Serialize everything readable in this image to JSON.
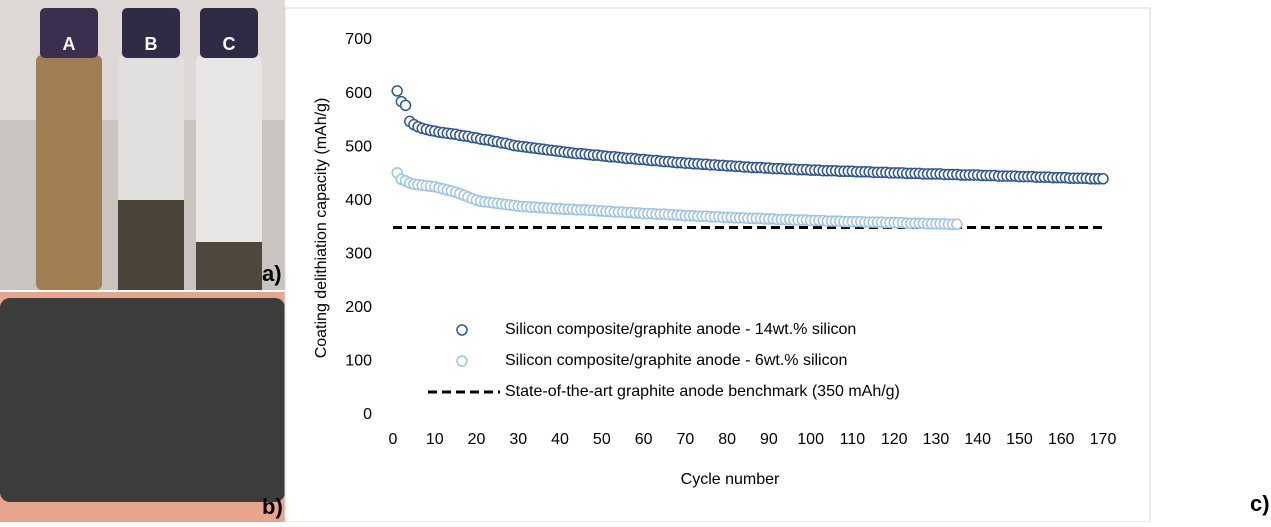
{
  "figure": {
    "panel_labels": [
      "a)",
      "b)",
      "c)"
    ],
    "vial_labels": [
      "A",
      "B",
      "C"
    ]
  },
  "chart_data": {
    "type": "scatter",
    "xlabel": "Cycle number",
    "ylabel": "Coating delithiation capacity (mAh/g)",
    "x": [
      1,
      2,
      3,
      4,
      5,
      6,
      7,
      8,
      9,
      10,
      11,
      12,
      13,
      14,
      15,
      16,
      17,
      18,
      19,
      20,
      21,
      22,
      23,
      24,
      25,
      26,
      27,
      28,
      29,
      30,
      31,
      32,
      33,
      34,
      35,
      36,
      37,
      38,
      39,
      40,
      41,
      42,
      43,
      44,
      45,
      46,
      47,
      48,
      49,
      50,
      51,
      52,
      53,
      54,
      55,
      56,
      57,
      58,
      59,
      60,
      61,
      62,
      63,
      64,
      65,
      66,
      67,
      68,
      69,
      70,
      71,
      72,
      73,
      74,
      75,
      76,
      77,
      78,
      79,
      80,
      81,
      82,
      83,
      84,
      85,
      86,
      87,
      88,
      89,
      90,
      91,
      92,
      93,
      94,
      95,
      96,
      97,
      98,
      99,
      100,
      101,
      102,
      103,
      104,
      105,
      106,
      107,
      108,
      109,
      110,
      111,
      112,
      113,
      114,
      115,
      116,
      117,
      118,
      119,
      120,
      121,
      122,
      123,
      124,
      125,
      126,
      127,
      128,
      129,
      130,
      131,
      132,
      133,
      134,
      135,
      136,
      137,
      138,
      139,
      140,
      141,
      142,
      143,
      144,
      145,
      146,
      147,
      148,
      149,
      150,
      151,
      152,
      153,
      154,
      155,
      156,
      157,
      158,
      159,
      160,
      161,
      162,
      163,
      164,
      165,
      166,
      167,
      168,
      169,
      170
    ],
    "series": [
      {
        "name": "Silicon composite/graphite anode - 14wt.% silicon",
        "color": "#2f5597",
        "values": [
          605,
          585,
          578,
          548,
          542,
          538,
          535,
          533,
          531,
          530,
          528,
          527,
          526,
          525,
          524,
          522,
          521,
          520,
          518,
          517,
          515,
          514,
          513,
          511,
          510,
          508,
          507,
          505,
          503,
          502,
          501,
          500,
          499,
          498,
          497,
          496,
          495,
          494,
          493,
          492,
          491,
          490,
          489,
          488,
          488,
          487,
          486,
          485,
          485,
          484,
          483,
          482,
          482,
          481,
          480,
          479,
          479,
          478,
          477,
          477,
          476,
          475,
          475,
          474,
          473,
          473,
          472,
          471,
          471,
          470,
          470,
          469,
          469,
          468,
          468,
          467,
          467,
          466,
          466,
          465,
          465,
          464,
          464,
          463,
          463,
          462,
          462,
          462,
          461,
          461,
          460,
          460,
          460,
          459,
          459,
          459,
          458,
          458,
          458,
          457,
          457,
          457,
          456,
          456,
          456,
          456,
          455,
          455,
          455,
          455,
          454,
          454,
          454,
          454,
          453,
          453,
          453,
          453,
          452,
          452,
          452,
          452,
          451,
          451,
          451,
          451,
          450,
          450,
          450,
          450,
          450,
          449,
          449,
          449,
          449,
          448,
          448,
          448,
          448,
          448,
          447,
          447,
          447,
          447,
          446,
          446,
          446,
          446,
          446,
          445,
          445,
          445,
          445,
          444,
          444,
          444,
          444,
          443,
          443,
          443,
          443,
          442,
          442,
          442,
          442,
          442,
          441,
          441,
          441,
          441
        ]
      },
      {
        "name": "Silicon composite/graphite anode - 6wt.% silicon",
        "color": "#9dc3e6",
        "values": [
          452,
          440,
          437,
          433,
          431,
          430,
          429,
          428,
          427,
          426,
          424,
          422,
          420,
          418,
          416,
          413,
          410,
          407,
          404,
          401,
          399,
          398,
          397,
          396,
          395,
          394,
          393,
          392,
          391,
          390,
          389,
          389,
          388,
          388,
          387,
          387,
          386,
          386,
          385,
          385,
          384,
          384,
          384,
          383,
          383,
          383,
          382,
          382,
          381,
          381,
          380,
          380,
          379,
          379,
          379,
          378,
          378,
          377,
          377,
          376,
          376,
          376,
          375,
          375,
          375,
          374,
          374,
          373,
          373,
          372,
          372,
          372,
          371,
          371,
          371,
          370,
          370,
          370,
          369,
          369,
          369,
          368,
          368,
          368,
          367,
          367,
          367,
          367,
          366,
          366,
          366,
          365,
          365,
          365,
          365,
          364,
          364,
          364,
          364,
          363,
          363,
          363,
          363,
          362,
          362,
          362,
          362,
          361,
          361,
          361,
          361,
          361,
          360,
          360,
          360,
          360,
          360,
          359,
          359,
          359,
          359,
          359,
          358,
          358,
          358,
          358,
          358,
          357,
          357,
          357,
          357,
          357,
          356,
          356,
          356,
          null,
          null,
          null,
          null,
          null,
          null,
          null,
          null,
          null,
          null,
          null,
          null,
          null,
          null,
          null,
          null,
          null,
          null,
          null,
          null,
          null,
          null,
          null,
          null,
          null,
          null,
          null,
          null,
          null,
          null
        ]
      }
    ],
    "reference_line": {
      "name": "State-of-the-art graphite anode benchmark (350 mAh/g)",
      "y": 350,
      "color": "#000000"
    },
    "xlim": [
      0,
      170
    ],
    "xticks": [
      0,
      10,
      20,
      30,
      40,
      50,
      60,
      70,
      80,
      90,
      100,
      110,
      120,
      130,
      140,
      150,
      160,
      170
    ],
    "ylim": [
      0,
      700
    ],
    "yticks": [
      0,
      100,
      200,
      300,
      400,
      500,
      600,
      700
    ]
  }
}
